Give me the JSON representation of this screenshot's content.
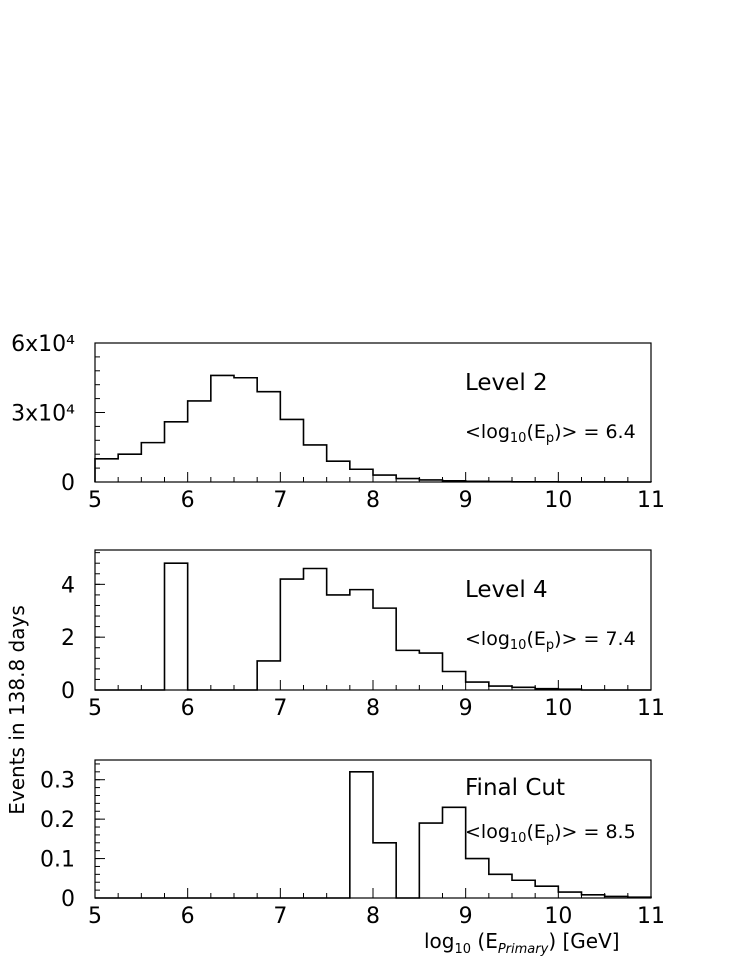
{
  "chart_data": [
    {
      "type": "histogram",
      "label": "Level 2",
      "mean_label": "<log10(Ep)> = 6.4",
      "xlim": [
        5,
        11
      ],
      "ylim": [
        0,
        60000
      ],
      "xticks": [
        5,
        6,
        7,
        8,
        9,
        10,
        11
      ],
      "yticks": [
        {
          "value": 0,
          "label": "0"
        },
        {
          "value": 30000,
          "label": "3x10⁴"
        },
        {
          "value": 60000,
          "label": "6x10⁴"
        }
      ],
      "bin_width": 0.25,
      "bin_start": 5.0,
      "values": [
        10000,
        12000,
        17000,
        26000,
        35000,
        46000,
        45000,
        39000,
        27000,
        16000,
        9000,
        5500,
        3000,
        1500,
        900,
        500,
        300,
        200,
        100,
        60,
        40,
        20,
        10,
        5
      ]
    },
    {
      "type": "histogram",
      "label": "Level 4",
      "mean_label": "<log10(Ep)> = 7.4",
      "xlim": [
        5,
        11
      ],
      "ylim": [
        0,
        5.3
      ],
      "xticks": [
        5,
        6,
        7,
        8,
        9,
        10,
        11
      ],
      "yticks": [
        {
          "value": 0,
          "label": "0"
        },
        {
          "value": 2,
          "label": "2"
        },
        {
          "value": 4,
          "label": "4"
        }
      ],
      "bin_width": 0.25,
      "bin_start": 5.0,
      "values": [
        0,
        0,
        0,
        4.8,
        0,
        0,
        0,
        1.1,
        4.2,
        4.6,
        3.6,
        3.8,
        3.1,
        1.5,
        1.4,
        0.7,
        0.3,
        0.15,
        0.1,
        0.05,
        0.03,
        0,
        0,
        0
      ]
    },
    {
      "type": "histogram",
      "label": "Final Cut",
      "mean_label": "<log10(Ep)> = 8.5",
      "xlim": [
        5,
        11
      ],
      "ylim": [
        0,
        0.35
      ],
      "xticks": [
        5,
        6,
        7,
        8,
        9,
        10,
        11
      ],
      "yticks": [
        {
          "value": 0,
          "label": "0"
        },
        {
          "value": 0.1,
          "label": "0.1"
        },
        {
          "value": 0.2,
          "label": "0.2"
        },
        {
          "value": 0.3,
          "label": "0.3"
        }
      ],
      "bin_width": 0.25,
      "bin_start": 5.0,
      "values": [
        0,
        0,
        0,
        0,
        0,
        0,
        0,
        0,
        0,
        0,
        0,
        0.32,
        0.14,
        0,
        0.19,
        0.23,
        0.1,
        0.06,
        0.045,
        0.03,
        0.015,
        0.008,
        0.004,
        0.002
      ]
    }
  ],
  "shared": {
    "ylabel": "Events in 138.8 days",
    "xlabel_prefix": "log",
    "xlabel_sub1": "10",
    "xlabel_mid": " (E",
    "xlabel_sub2": "Primary",
    "xlabel_suffix": ") [GeV]"
  }
}
